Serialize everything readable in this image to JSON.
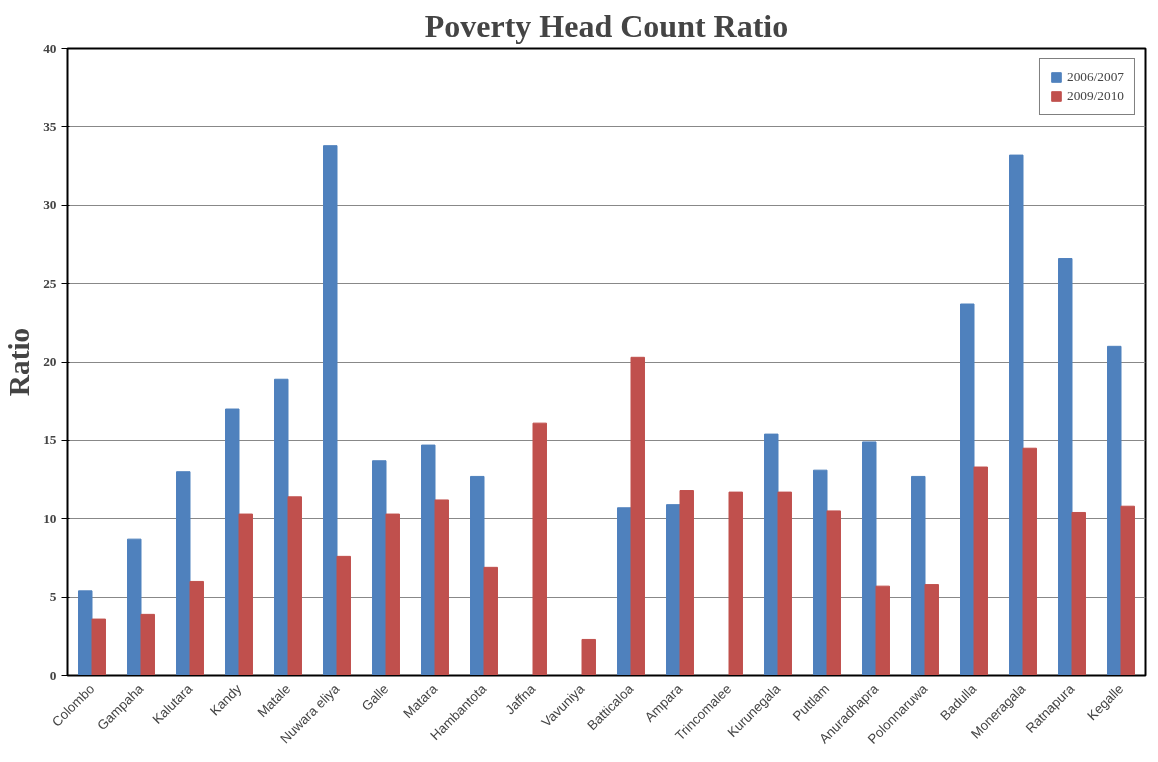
{
  "chart_data": {
    "type": "bar",
    "title": "Poverty Head Count Ratio",
    "ylabel": "Ratio",
    "categories": [
      "Colombo",
      "Gampaha",
      "Kalutara",
      "Kandy",
      "Matale",
      "Nuwara eliya",
      "Galle",
      "Matara",
      "Hambantota",
      "Jaffna",
      "Vavuniya",
      "Batticaloa",
      "Ampara",
      "Trincomalee",
      "Kurunegala",
      "Puttlam",
      "Anuradhapra",
      "Polonnaruwa",
      "Badulla",
      "Moneragala",
      "Ratnapura",
      "Kegalle"
    ],
    "series": [
      {
        "name": "2006/2007",
        "color": "#4f81bd",
        "values": [
          5.4,
          8.7,
          13.0,
          17.0,
          18.9,
          33.8,
          13.7,
          14.7,
          12.7,
          null,
          null,
          10.7,
          10.9,
          null,
          15.4,
          13.1,
          14.9,
          12.7,
          23.7,
          33.2,
          26.6,
          21.0
        ]
      },
      {
        "name": "2009/2010",
        "color": "#c0504d",
        "values": [
          3.6,
          3.9,
          6.0,
          10.3,
          11.4,
          7.6,
          10.3,
          11.2,
          6.9,
          16.1,
          2.3,
          20.3,
          11.8,
          11.7,
          11.7,
          10.5,
          5.7,
          5.8,
          13.3,
          14.5,
          10.4,
          10.8
        ]
      }
    ],
    "ylim": [
      0,
      40
    ],
    "yticks": [
      0,
      5,
      10,
      15,
      20,
      25,
      30,
      35,
      40
    ],
    "grid": "y",
    "legend": "top right"
  }
}
